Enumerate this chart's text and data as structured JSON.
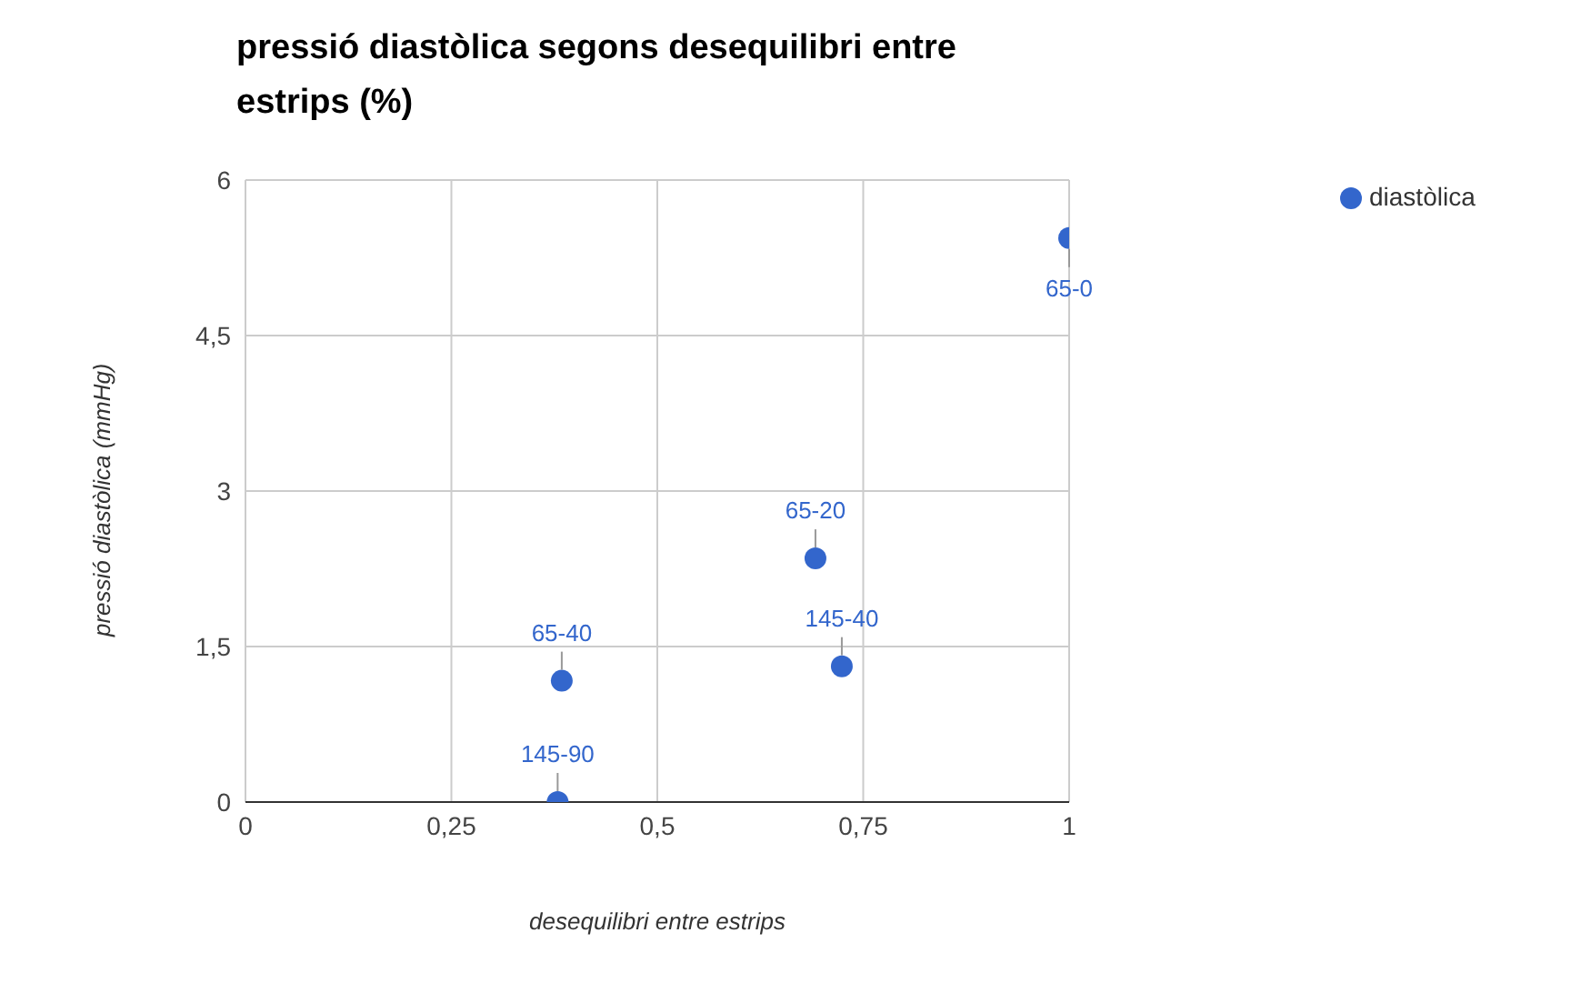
{
  "chart_data": {
    "type": "scatter",
    "title": "pressió diastòlica segons desequilibri entre estrips (%)",
    "xlabel": "desequilibri entre estrips",
    "ylabel": "pressió diastòlica (mmHg)",
    "x": [
      1,
      0.692,
      0.724,
      0.384,
      0.379
    ],
    "series": [
      {
        "name": "diastòlica",
        "color": "#3366cc",
        "values": [
          5.44,
          2.35,
          1.31,
          1.17,
          0
        ],
        "value_labels": [
          "65-0",
          "65-20",
          "145-40",
          "65-40",
          "145-90"
        ]
      }
    ],
    "xlim": [
      0,
      1
    ],
    "xticks": [
      0,
      {
        "value": 0.25,
        "label": "0,25"
      },
      {
        "value": 0.5,
        "label": "0,5"
      },
      {
        "value": 0.75,
        "label": "0,75"
      },
      1
    ],
    "ylim": [
      0,
      6
    ],
    "yticks": [
      0,
      {
        "value": 1.5,
        "label": "1,5"
      },
      3,
      {
        "value": 4.5,
        "label": "4,5"
      },
      6
    ],
    "grid": true,
    "legend": "top right",
    "marker": "circle"
  }
}
